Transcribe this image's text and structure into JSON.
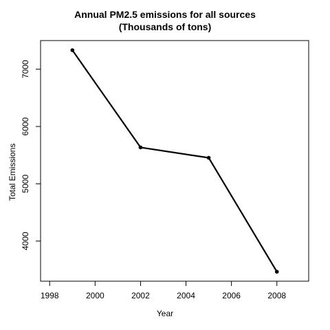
{
  "chart_data": {
    "type": "line",
    "title": "Annual PM2.5 emissions for all sources",
    "subtitle": "(Thousands of tons)",
    "xlabel": "Year",
    "ylabel": "Total Emissions",
    "x": [
      1999,
      2002,
      2005,
      2008
    ],
    "values": [
      7332,
      5635,
      5454,
      3465
    ],
    "xticks": [
      1998,
      2000,
      2002,
      2004,
      2006,
      2008
    ],
    "yticks": [
      4000,
      5000,
      6000,
      7000
    ],
    "xlim": [
      1997.6,
      2009.4
    ],
    "ylim": [
      3300,
      7500
    ],
    "grid": false,
    "legend": "none",
    "line_color": "#000000",
    "marker": "filled-circle"
  }
}
